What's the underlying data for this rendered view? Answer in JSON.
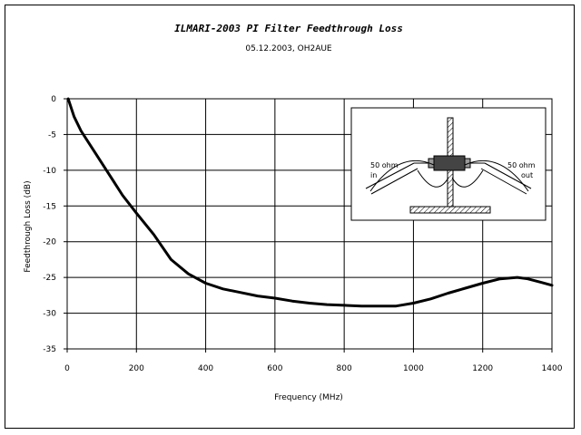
{
  "chart_data": {
    "type": "line",
    "title": "ILMARI-2003 PI Filter Feedthrough Loss",
    "subtitle": "05.12.2003, OH2AUE",
    "xlabel": "Frequency (MHz)",
    "ylabel": "Feedthrough Loss (dB)",
    "xlim": [
      0,
      1400
    ],
    "ylim": [
      -35,
      0
    ],
    "xticks": [
      "0",
      "200",
      "400",
      "600",
      "800",
      "1000",
      "1200",
      "1400"
    ],
    "xtick_values": [
      0,
      200,
      400,
      600,
      800,
      1000,
      1200,
      1400
    ],
    "yticks": [
      "0",
      "-5",
      "-10",
      "-15",
      "-20",
      "-25",
      "-30",
      "-35"
    ],
    "ytick_values": [
      0,
      -5,
      -10,
      -15,
      -20,
      -25,
      -30,
      -35
    ],
    "grid": true,
    "series_color": "#000000",
    "series": [
      {
        "x": [
          3,
          20,
          40,
          80,
          120,
          160,
          200,
          250,
          300,
          350,
          400,
          450,
          500,
          550,
          600,
          650,
          700,
          750,
          800,
          850,
          900,
          950,
          1000,
          1050,
          1100,
          1150,
          1200,
          1250,
          1300,
          1330,
          1370,
          1400
        ],
        "y": [
          0,
          -2.5,
          -4.5,
          -7.5,
          -10.5,
          -13.5,
          -16,
          -19,
          -22.5,
          -24.5,
          -25.8,
          -26.6,
          -27.1,
          -27.6,
          -27.9,
          -28.3,
          -28.6,
          -28.8,
          -28.9,
          -29.0,
          -29.0,
          -29.0,
          -28.6,
          -28.0,
          -27.2,
          -26.5,
          -25.8,
          -25.2,
          -25.0,
          -25.2,
          -25.7,
          -26.1
        ]
      }
    ],
    "inset": {
      "left_label_line1": "50 ohm",
      "left_label_line2": "in",
      "right_label_line1": "50 ohm",
      "right_label_line2": "out"
    }
  }
}
